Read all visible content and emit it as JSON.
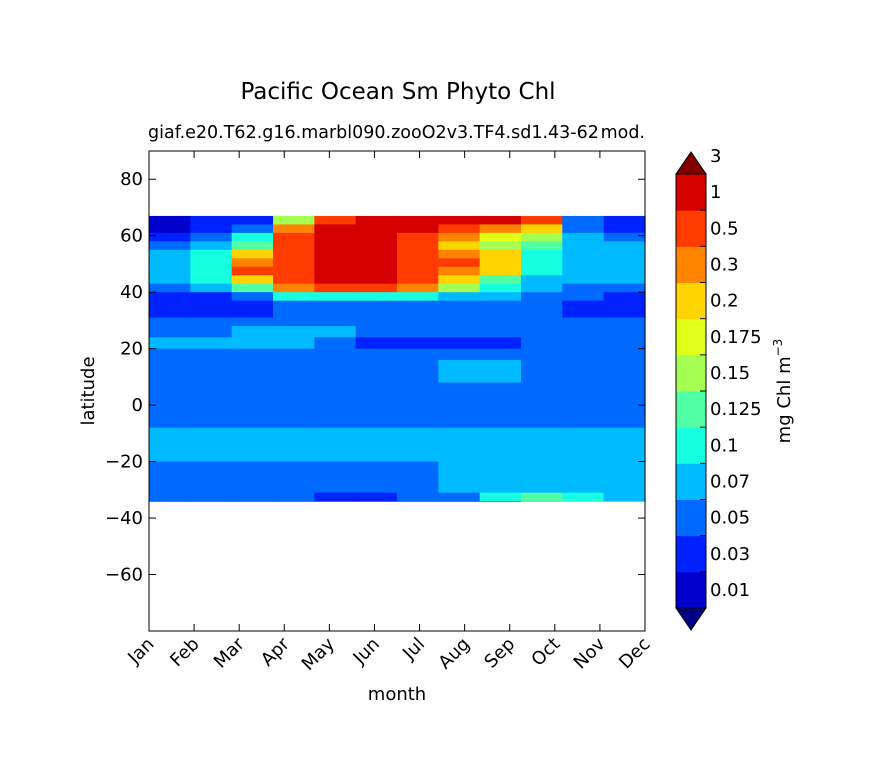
{
  "chart_data": {
    "type": "heatmap",
    "title": "Pacific Ocean Sm Phyto Chl",
    "subtitle_left": "giaf.e20.T62.g16.marbl090.zooO2v3.TF4.sd1.43-62",
    "subtitle_right": "mod.",
    "xlabel": "month",
    "ylabel": "latitude",
    "x_categories": [
      "Jan",
      "Feb",
      "Mar",
      "Apr",
      "May",
      "Jun",
      "Jul",
      "Aug",
      "Sep",
      "Oct",
      "Nov",
      "Dec"
    ],
    "ylim": [
      -80,
      90
    ],
    "yticks": [
      80,
      60,
      40,
      20,
      0,
      -20,
      -40,
      -60
    ],
    "data_lat_range": [
      -34,
      67
    ],
    "colorbar": {
      "label": "mg Chl m",
      "label_exponent": "−3",
      "extend": "both",
      "levels": [
        "0.01",
        "0.03",
        "0.05",
        "0.07",
        "0.1",
        "0.125",
        "0.15",
        "0.175",
        "0.2",
        "0.3",
        "0.5",
        "1",
        "3"
      ],
      "colors": [
        "#000080",
        "#0000cd",
        "#0022ff",
        "#006aff",
        "#00baff",
        "#16ffe0",
        "#52ffa5",
        "#a5ff52",
        "#e0ff16",
        "#ffd400",
        "#ff8400",
        "#ff3b00",
        "#d40000",
        "#800000"
      ]
    },
    "fields": {
      "band_lats": [
        67,
        64,
        61,
        58,
        55,
        52,
        49,
        46,
        43,
        40,
        37,
        34,
        31,
        28,
        24,
        20,
        16,
        12,
        8,
        4,
        0,
        -4,
        -8,
        -12,
        -16,
        -20,
        -24,
        -28,
        -31,
        -34
      ],
      "month_values": [
        {
          "month": "Jan",
          "band_values": [
            0.02,
            0.02,
            0.04,
            0.06,
            0.08,
            0.08,
            0.08,
            0.08,
            0.06,
            0.04,
            0.03,
            0.04,
            0.06,
            0.06,
            0.08,
            0.06,
            0.06,
            0.05,
            0.05,
            0.05,
            0.06,
            0.06,
            0.08,
            0.08,
            0.08,
            0.06,
            0.06,
            0.06,
            0.06,
            0.06
          ]
        },
        {
          "month": "Feb",
          "band_values": [
            0.03,
            0.04,
            0.06,
            0.08,
            0.1,
            0.11,
            0.12,
            0.1,
            0.08,
            0.04,
            0.03,
            0.04,
            0.06,
            0.06,
            0.08,
            0.06,
            0.06,
            0.05,
            0.05,
            0.05,
            0.06,
            0.06,
            0.08,
            0.08,
            0.08,
            0.06,
            0.06,
            0.06,
            0.06,
            0.06
          ]
        },
        {
          "month": "Mar",
          "band_values": [
            0.04,
            0.06,
            0.1,
            0.14,
            0.25,
            0.4,
            0.6,
            0.25,
            0.13,
            0.06,
            0.04,
            0.04,
            0.06,
            0.08,
            0.08,
            0.06,
            0.06,
            0.05,
            0.05,
            0.05,
            0.06,
            0.06,
            0.08,
            0.08,
            0.08,
            0.06,
            0.06,
            0.06,
            0.05,
            0.06
          ]
        },
        {
          "month": "Apr",
          "band_values": [
            0.15,
            0.3,
            0.6,
            0.8,
            0.9,
            0.9,
            0.9,
            0.8,
            0.4,
            0.1,
            0.05,
            0.05,
            0.06,
            0.08,
            0.08,
            0.06,
            0.06,
            0.05,
            0.05,
            0.05,
            0.06,
            0.06,
            0.08,
            0.08,
            0.08,
            0.06,
            0.06,
            0.06,
            0.05,
            0.06
          ]
        },
        {
          "month": "May",
          "band_values": [
            0.6,
            1.5,
            1.5,
            1.5,
            1.5,
            1.5,
            1.5,
            1.5,
            0.6,
            0.1,
            0.05,
            0.05,
            0.06,
            0.08,
            0.06,
            0.06,
            0.06,
            0.05,
            0.05,
            0.05,
            0.06,
            0.06,
            0.08,
            0.08,
            0.08,
            0.06,
            0.06,
            0.06,
            0.04,
            0.06
          ]
        },
        {
          "month": "Jun",
          "band_values": [
            1.5,
            1.5,
            1.5,
            1.5,
            1.5,
            1.5,
            1.5,
            1.5,
            0.6,
            0.1,
            0.05,
            0.05,
            0.06,
            0.05,
            0.04,
            0.06,
            0.06,
            0.05,
            0.05,
            0.05,
            0.06,
            0.06,
            0.08,
            0.08,
            0.08,
            0.06,
            0.06,
            0.06,
            0.04,
            0.06
          ]
        },
        {
          "month": "Jul",
          "band_values": [
            1.5,
            1.5,
            0.8,
            0.8,
            0.9,
            0.9,
            0.8,
            0.6,
            0.35,
            0.1,
            0.05,
            0.05,
            0.06,
            0.05,
            0.04,
            0.06,
            0.06,
            0.05,
            0.05,
            0.05,
            0.06,
            0.06,
            0.08,
            0.08,
            0.08,
            0.06,
            0.06,
            0.06,
            0.05,
            0.06
          ]
        },
        {
          "month": "Aug",
          "band_values": [
            1.5,
            0.8,
            0.3,
            0.25,
            0.3,
            0.5,
            0.4,
            0.25,
            0.16,
            0.08,
            0.05,
            0.05,
            0.06,
            0.05,
            0.04,
            0.06,
            0.08,
            0.08,
            0.05,
            0.05,
            0.06,
            0.06,
            0.08,
            0.08,
            0.08,
            0.08,
            0.08,
            0.08,
            0.06,
            0.06
          ]
        },
        {
          "month": "Sep",
          "band_values": [
            1.5,
            0.3,
            0.18,
            0.16,
            0.2,
            0.25,
            0.2,
            0.14,
            0.1,
            0.07,
            0.05,
            0.05,
            0.06,
            0.05,
            0.04,
            0.06,
            0.08,
            0.08,
            0.05,
            0.05,
            0.06,
            0.06,
            0.08,
            0.08,
            0.08,
            0.08,
            0.08,
            0.08,
            0.11,
            0.06
          ]
        },
        {
          "month": "Oct",
          "band_values": [
            0.5,
            0.2,
            0.15,
            0.13,
            0.12,
            0.12,
            0.1,
            0.09,
            0.08,
            0.06,
            0.05,
            0.05,
            0.06,
            0.05,
            0.05,
            0.06,
            0.06,
            0.05,
            0.05,
            0.05,
            0.06,
            0.06,
            0.08,
            0.08,
            0.08,
            0.08,
            0.08,
            0.08,
            0.13,
            0.11
          ]
        },
        {
          "month": "Nov",
          "band_values": [
            0.05,
            0.06,
            0.08,
            0.09,
            0.08,
            0.08,
            0.08,
            0.07,
            0.06,
            0.05,
            0.04,
            0.04,
            0.06,
            0.06,
            0.06,
            0.06,
            0.06,
            0.05,
            0.05,
            0.05,
            0.06,
            0.06,
            0.08,
            0.08,
            0.08,
            0.08,
            0.08,
            0.08,
            0.11,
            0.13
          ]
        },
        {
          "month": "Dec",
          "band_values": [
            0.03,
            0.04,
            0.06,
            0.08,
            0.08,
            0.08,
            0.08,
            0.07,
            0.06,
            0.04,
            0.03,
            0.04,
            0.06,
            0.06,
            0.06,
            0.06,
            0.06,
            0.05,
            0.05,
            0.05,
            0.06,
            0.06,
            0.08,
            0.08,
            0.08,
            0.08,
            0.08,
            0.08,
            0.08,
            0.11
          ]
        }
      ]
    }
  }
}
